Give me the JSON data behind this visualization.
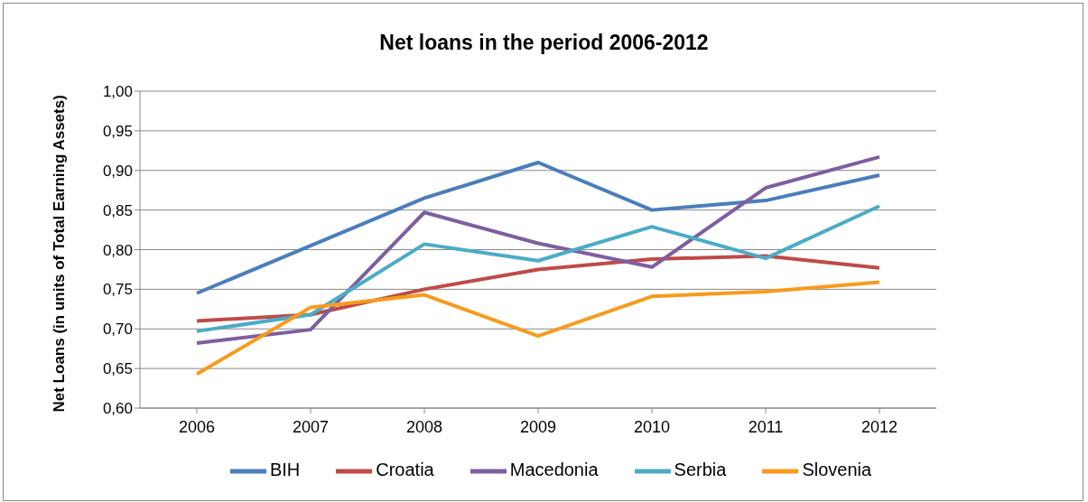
{
  "chart_data": {
    "type": "line",
    "title": "Net loans in the period 2006-2012",
    "ylabel": "Net Loans (in units of Total Earning Assets)",
    "categories": [
      "2006",
      "2007",
      "2008",
      "2009",
      "2010",
      "2011",
      "2012"
    ],
    "series": [
      {
        "name": "BIH",
        "color": "#4a7ebb",
        "values": [
          0.745,
          0.805,
          0.865,
          0.91,
          0.85,
          0.862,
          0.894
        ]
      },
      {
        "name": "Croatia",
        "color": "#be4b48",
        "values": [
          0.71,
          0.718,
          0.75,
          0.775,
          0.788,
          0.792,
          0.777
        ]
      },
      {
        "name": "Macedonia",
        "color": "#7d5fa0",
        "values": [
          0.682,
          0.699,
          0.847,
          0.808,
          0.778,
          0.878,
          0.917
        ]
      },
      {
        "name": "Serbia",
        "color": "#4bacc6",
        "values": [
          0.697,
          0.718,
          0.807,
          0.786,
          0.829,
          0.789,
          0.855
        ]
      },
      {
        "name": "Slovenia",
        "color": "#f79b1e",
        "values": [
          0.643,
          0.727,
          0.743,
          0.691,
          0.741,
          0.747,
          0.759
        ]
      }
    ],
    "ylim": [
      0.6,
      1.0
    ],
    "yticks": [
      {
        "value": 0.6,
        "label": "0,60"
      },
      {
        "value": 0.65,
        "label": "0,65"
      },
      {
        "value": 0.7,
        "label": "0,70"
      },
      {
        "value": 0.75,
        "label": "0,75"
      },
      {
        "value": 0.8,
        "label": "0,80"
      },
      {
        "value": 0.85,
        "label": "0,85"
      },
      {
        "value": 0.9,
        "label": "0,90"
      },
      {
        "value": 0.95,
        "label": "0,95"
      },
      {
        "value": 1.0,
        "label": "1,00"
      }
    ],
    "grid": "y",
    "legend": "bottom",
    "marker": "none",
    "line_style": "solid"
  }
}
